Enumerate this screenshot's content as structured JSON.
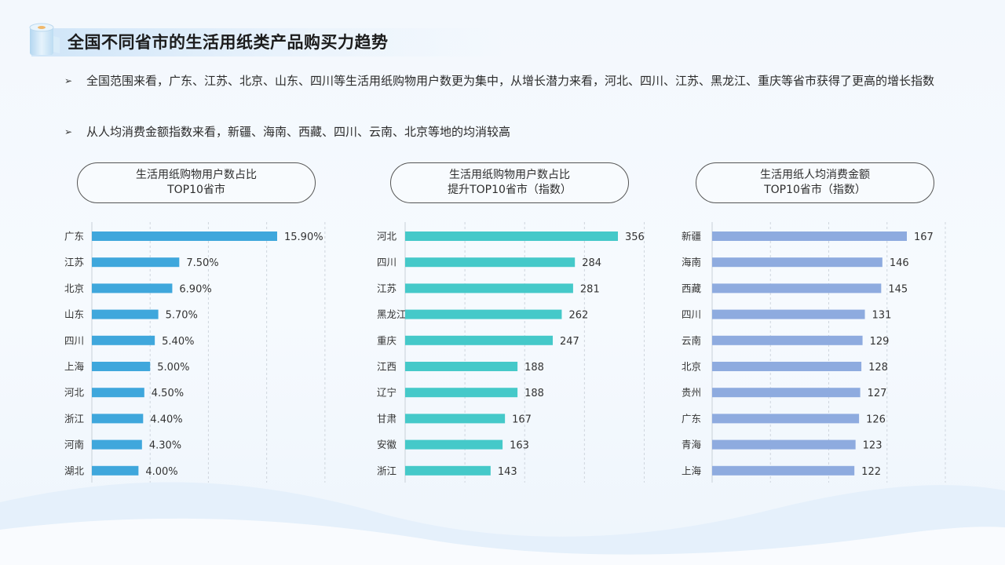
{
  "slide": {
    "title": "全国不同省市的生活用纸类产品购买力趋势",
    "bullets": [
      "全国范围来看，广东、江苏、北京、山东、四川等生活用纸购物用户数更为集中，从增长潜力来看，河北、四川、江苏、黑龙江、重庆等省市获得了更高的增长指数",
      "从人均消费金额指数来看，新疆、海南、西藏、四川、云南、北京等地的均消较高"
    ],
    "bullet_marker": "➢",
    "icon": "paper-roll-icon"
  },
  "chart_data": [
    {
      "type": "bar",
      "orientation": "horizontal",
      "title_lines": [
        "生活用纸购物用户数占比",
        "TOP10省市"
      ],
      "categories": [
        "广东",
        "江苏",
        "北京",
        "山东",
        "四川",
        "上海",
        "河北",
        "浙江",
        "河南",
        "湖北"
      ],
      "values": [
        15.9,
        7.5,
        6.9,
        5.7,
        5.4,
        5.0,
        4.5,
        4.4,
        4.3,
        4.0
      ],
      "value_labels": [
        "15.90%",
        "7.50%",
        "6.90%",
        "5.70%",
        "5.40%",
        "5.00%",
        "4.50%",
        "4.40%",
        "4.30%",
        "4.00%"
      ],
      "xlim": [
        0,
        20
      ],
      "grid_values": [
        5,
        10,
        15,
        20
      ],
      "grid": true,
      "color": "#3fa7dc"
    },
    {
      "type": "bar",
      "orientation": "horizontal",
      "title_lines": [
        "生活用纸购物用户数占比",
        "提升TOP10省市（指数）"
      ],
      "categories": [
        "河北",
        "四川",
        "江苏",
        "黑龙江",
        "重庆",
        "江西",
        "辽宁",
        "甘肃",
        "安徽",
        "浙江"
      ],
      "values": [
        356,
        284,
        281,
        262,
        247,
        188,
        188,
        167,
        163,
        143
      ],
      "value_labels": [
        "356",
        "284",
        "281",
        "262",
        "247",
        "188",
        "188",
        "167",
        "163",
        "143"
      ],
      "xlim": [
        0,
        400
      ],
      "grid_values": [
        100,
        200,
        300,
        400
      ],
      "grid": true,
      "color": "#45c9c9"
    },
    {
      "type": "bar",
      "orientation": "horizontal",
      "title_lines": [
        "生活用纸人均消费金额",
        "TOP10省市（指数）"
      ],
      "categories": [
        "新疆",
        "海南",
        "西藏",
        "四川",
        "云南",
        "北京",
        "贵州",
        "广东",
        "青海",
        "上海"
      ],
      "values": [
        167,
        146,
        145,
        131,
        129,
        128,
        127,
        126,
        123,
        122
      ],
      "value_labels": [
        "167",
        "146",
        "145",
        "131",
        "129",
        "128",
        "127",
        "126",
        "123",
        "122"
      ],
      "xlim": [
        0,
        200
      ],
      "grid_values": [
        50,
        100,
        150,
        200
      ],
      "grid": true,
      "color": "#8eabdf"
    }
  ]
}
